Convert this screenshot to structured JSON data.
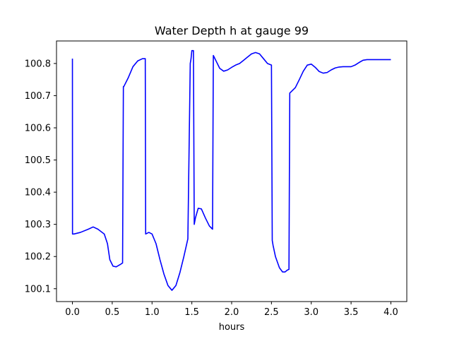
{
  "chart_data": {
    "type": "line",
    "title": "Water Depth h at gauge 99",
    "xlabel": "hours",
    "ylabel": "",
    "xlim": [
      -0.2,
      4.2
    ],
    "ylim": [
      100.06,
      100.87
    ],
    "xticks": [
      0.0,
      0.5,
      1.0,
      1.5,
      2.0,
      2.5,
      3.0,
      3.5,
      4.0
    ],
    "xtick_labels": [
      "0.0",
      "0.5",
      "1.0",
      "1.5",
      "2.0",
      "2.5",
      "3.0",
      "3.5",
      "4.0"
    ],
    "yticks": [
      100.1,
      100.2,
      100.3,
      100.4,
      100.5,
      100.6,
      100.7,
      100.8
    ],
    "ytick_labels": [
      "100.1",
      "100.2",
      "100.3",
      "100.4",
      "100.5",
      "100.6",
      "100.7",
      "100.8"
    ],
    "grid": false,
    "series": [
      {
        "color": "#0000ff",
        "x": [
          0.0,
          0.001,
          0.02,
          0.1,
          0.2,
          0.26,
          0.32,
          0.4,
          0.44,
          0.47,
          0.51,
          0.55,
          0.6,
          0.63,
          0.64,
          0.645,
          0.7,
          0.76,
          0.82,
          0.88,
          0.915,
          0.92,
          0.96,
          1.0,
          1.05,
          1.1,
          1.15,
          1.2,
          1.25,
          1.3,
          1.35,
          1.4,
          1.45,
          1.48,
          1.49,
          1.5,
          1.52,
          1.53,
          1.545,
          1.58,
          1.62,
          1.67,
          1.72,
          1.76,
          1.77,
          1.8,
          1.85,
          1.9,
          1.95,
          2.0,
          2.05,
          2.1,
          2.15,
          2.2,
          2.25,
          2.3,
          2.35,
          2.4,
          2.45,
          2.5,
          2.51,
          2.52,
          2.55,
          2.6,
          2.64,
          2.67,
          2.7,
          2.72,
          2.73,
          2.8,
          2.85,
          2.9,
          2.95,
          3.0,
          3.05,
          3.1,
          3.15,
          3.2,
          3.25,
          3.3,
          3.35,
          3.4,
          3.45,
          3.5,
          3.55,
          3.6,
          3.65,
          3.7,
          3.75,
          3.8,
          3.85,
          3.9,
          3.95,
          4.0
        ],
        "y": [
          100.815,
          100.27,
          100.27,
          100.275,
          100.285,
          100.292,
          100.285,
          100.27,
          100.24,
          100.19,
          100.17,
          100.168,
          100.175,
          100.18,
          100.728,
          100.728,
          100.755,
          100.79,
          100.808,
          100.815,
          100.815,
          100.27,
          100.275,
          100.27,
          100.24,
          100.19,
          100.145,
          100.11,
          100.095,
          100.11,
          100.15,
          100.2,
          100.255,
          100.8,
          100.815,
          100.84,
          100.84,
          100.3,
          100.32,
          100.35,
          100.348,
          100.32,
          100.295,
          100.285,
          100.825,
          100.81,
          100.785,
          100.776,
          100.78,
          100.788,
          100.795,
          100.8,
          100.81,
          100.82,
          100.83,
          100.834,
          100.83,
          100.815,
          100.8,
          100.795,
          100.25,
          100.235,
          100.2,
          100.165,
          100.152,
          100.152,
          100.158,
          100.16,
          100.708,
          100.725,
          100.75,
          100.776,
          100.795,
          100.798,
          100.788,
          100.775,
          100.77,
          100.772,
          100.78,
          100.786,
          100.789,
          100.79,
          100.79,
          100.79,
          100.795,
          100.803,
          100.81,
          100.812,
          100.812,
          100.812,
          100.812,
          100.812,
          100.812,
          100.812
        ]
      }
    ]
  }
}
